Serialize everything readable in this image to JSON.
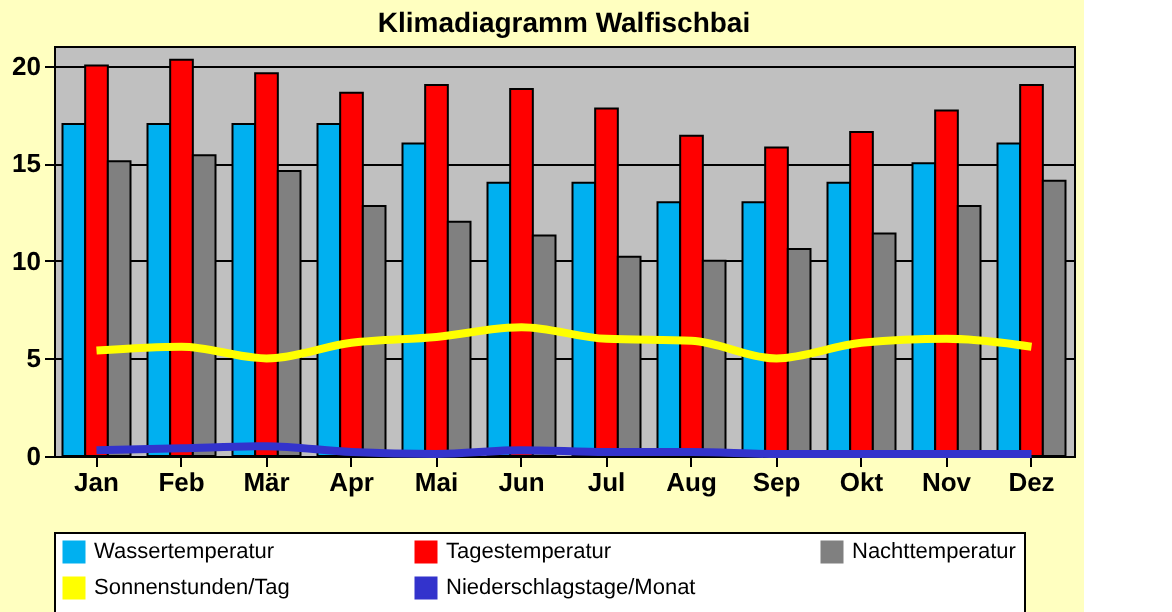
{
  "chart_data": {
    "type": "bar",
    "title": "Klimadiagramm Walfischbai",
    "categories": [
      "Jan",
      "Feb",
      "Mär",
      "Apr",
      "Mai",
      "Jun",
      "Jul",
      "Aug",
      "Sep",
      "Okt",
      "Nov",
      "Dez"
    ],
    "series": [
      {
        "name": "Wassertemperatur",
        "color": "#00b0f0",
        "values": [
          17,
          17,
          17,
          17,
          16,
          14,
          14,
          13,
          13,
          14,
          15,
          16
        ]
      },
      {
        "name": "Tagestemperatur",
        "color": "#ff0000",
        "values": [
          20,
          20.3,
          19.6,
          18.6,
          19,
          18.8,
          17.8,
          16.4,
          15.8,
          16.6,
          17.7,
          19
        ]
      },
      {
        "name": "Nachttemperatur",
        "color": "#808080",
        "values": [
          15.1,
          15.4,
          14.6,
          12.8,
          12,
          11.3,
          10.2,
          10,
          10.6,
          11.4,
          12.8,
          14.1
        ]
      },
      {
        "name": "Sonnenstunden/Tag",
        "color": "#ffff00",
        "type": "line",
        "values": [
          5.4,
          5.6,
          5,
          5.8,
          6.1,
          6.6,
          6,
          5.9,
          5,
          5.8,
          6,
          5.6
        ]
      },
      {
        "name": "Niederschlagstage/Monat",
        "color": "#3333cc",
        "type": "line",
        "values": [
          0.3,
          0.4,
          0.5,
          0.2,
          0.1,
          0.3,
          0.2,
          0.2,
          0.1,
          0.1,
          0.1,
          0.1
        ]
      }
    ],
    "ylim": [
      0,
      21
    ],
    "yticks": [
      0,
      5,
      10,
      15,
      20
    ],
    "grid": "y",
    "legend": "bottom",
    "marker": "none",
    "line_style": "solid"
  }
}
